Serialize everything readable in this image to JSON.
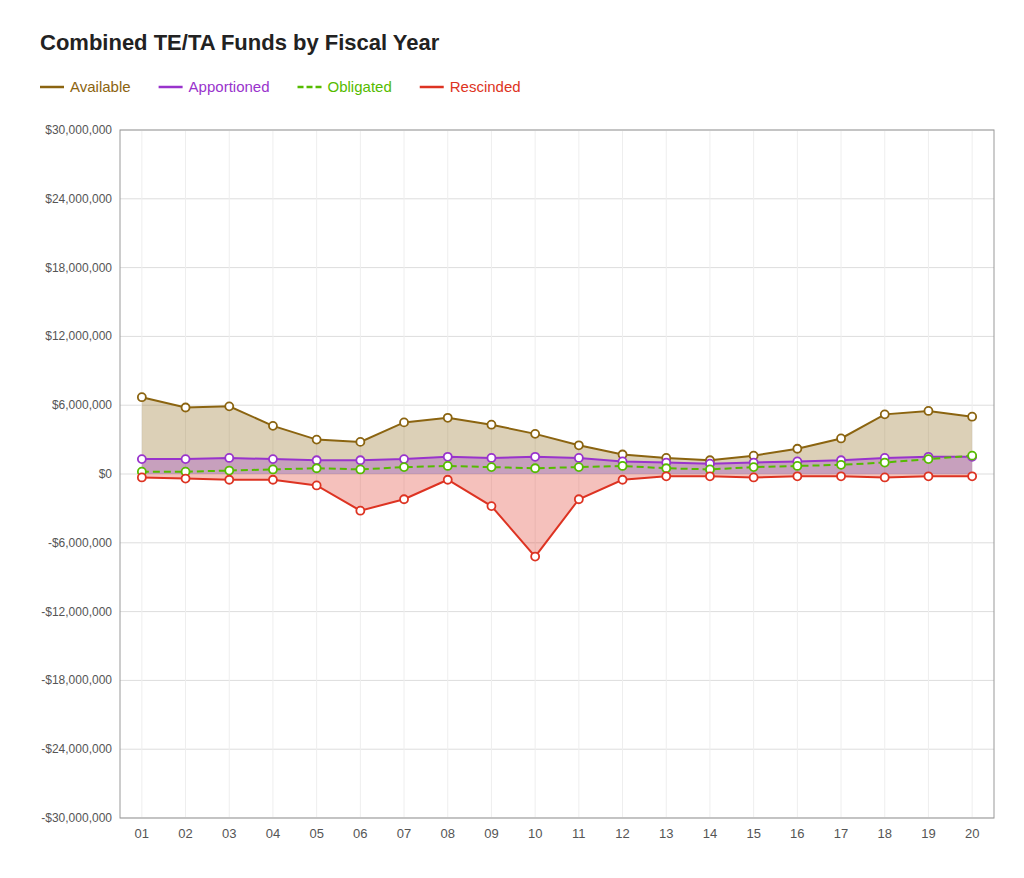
{
  "chart_data": {
    "type": "line",
    "title": "Combined TE/TA Funds by Fiscal Year",
    "categories": [
      "01",
      "02",
      "03",
      "04",
      "05",
      "06",
      "07",
      "08",
      "09",
      "10",
      "11",
      "12",
      "13",
      "14",
      "15",
      "16",
      "17",
      "18",
      "19",
      "20"
    ],
    "series": [
      {
        "name": "Available",
        "color": "#8B6410",
        "type": "area",
        "line_style": "solid",
        "marker": "circle",
        "values": [
          6700000,
          5800000,
          5900000,
          4200000,
          3000000,
          2800000,
          4500000,
          4900000,
          4300000,
          3500000,
          2500000,
          1700000,
          1400000,
          1200000,
          1600000,
          2200000,
          3100000,
          5200000,
          5500000,
          5000000
        ]
      },
      {
        "name": "Apportioned",
        "color": "#9933CC",
        "type": "area",
        "line_style": "solid",
        "marker": "circle",
        "values": [
          1300000,
          1300000,
          1400000,
          1300000,
          1200000,
          1200000,
          1300000,
          1500000,
          1400000,
          1500000,
          1400000,
          1100000,
          1000000,
          900000,
          1000000,
          1100000,
          1200000,
          1400000,
          1500000,
          1500000
        ]
      },
      {
        "name": "Obligated",
        "color": "#55BB00",
        "type": "line",
        "line_style": "dashed",
        "marker": "circle",
        "values": [
          200000,
          200000,
          300000,
          400000,
          500000,
          400000,
          600000,
          700000,
          600000,
          500000,
          600000,
          700000,
          500000,
          400000,
          600000,
          700000,
          800000,
          1000000,
          1300000,
          1600000
        ]
      },
      {
        "name": "Rescinded",
        "color": "#DD3322",
        "type": "area",
        "line_style": "solid",
        "marker": "circle",
        "values": [
          -300000,
          -400000,
          -500000,
          -500000,
          -1000000,
          -3200000,
          -2200000,
          -500000,
          -2800000,
          -7200000,
          -2200000,
          -500000,
          -200000,
          -200000,
          -300000,
          -200000,
          -200000,
          -300000,
          -200000,
          -200000
        ]
      }
    ],
    "ylim": [
      -30000000,
      30000000
    ],
    "yticks": [
      {
        "value": -30000000,
        "label": "-$30,000,000"
      },
      {
        "value": -24000000,
        "label": "-$24,000,000"
      },
      {
        "value": -18000000,
        "label": "-$18,000,000"
      },
      {
        "value": -12000000,
        "label": "-$12,000,000"
      },
      {
        "value": -6000000,
        "label": "-$6,000,000"
      },
      {
        "value": 0,
        "label": "$0"
      },
      {
        "value": 6000000,
        "label": "$6,000,000"
      },
      {
        "value": 12000000,
        "label": "$12,000,000"
      },
      {
        "value": 18000000,
        "label": "$18,000,000"
      },
      {
        "value": 24000000,
        "label": "$24,000,000"
      },
      {
        "value": 30000000,
        "label": "$30,000,000"
      }
    ],
    "grid": true,
    "legend": "top"
  }
}
